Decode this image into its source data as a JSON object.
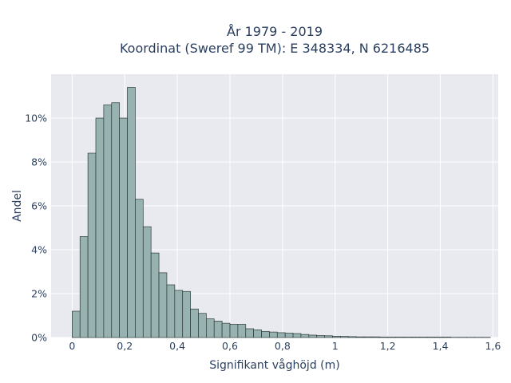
{
  "chart_data": {
    "type": "bar",
    "title_line1": "År 1979 - 2019",
    "title_line2": "Koordinat (Sweref 99 TM): E 348334, N 6216485",
    "xlabel": "Signifikant våghöjd (m)",
    "ylabel": "Andel",
    "bin_width": 0.03,
    "x_start": 0,
    "values": [
      1.2,
      4.6,
      8.4,
      10.0,
      10.6,
      10.7,
      10.0,
      11.4,
      6.3,
      5.05,
      3.85,
      2.95,
      2.4,
      2.15,
      2.1,
      1.3,
      1.1,
      0.85,
      0.75,
      0.65,
      0.6,
      0.6,
      0.4,
      0.35,
      0.28,
      0.25,
      0.22,
      0.2,
      0.18,
      0.14,
      0.11,
      0.09,
      0.08,
      0.06,
      0.05,
      0.04,
      0.03,
      0.03,
      0.03,
      0.02,
      0.02,
      0.02,
      0.02,
      0.02,
      0.02,
      0.02,
      0.02,
      0.02,
      0.01,
      0.01,
      0.01,
      0.01,
      0.01
    ],
    "xlim": [
      -0.08,
      1.62
    ],
    "ylim": [
      0,
      12
    ],
    "x_ticks": [
      0,
      0.2,
      0.4,
      0.6,
      0.8,
      1,
      1.2,
      1.4,
      1.6
    ],
    "x_tick_labels": [
      "0",
      "0,2",
      "0,4",
      "0,6",
      "0,8",
      "1",
      "1,2",
      "1,4",
      "1,6"
    ],
    "y_ticks": [
      0,
      2,
      4,
      6,
      8,
      10
    ],
    "y_tick_labels": [
      "0%",
      "2%",
      "4%",
      "6%",
      "8%",
      "10%"
    ],
    "grid": true,
    "colors": {
      "bar_fill": "#97b2b0",
      "bar_stroke": "#2b3a39",
      "plot_bg": "#e9e9f0",
      "grid": "#ffffff"
    }
  }
}
